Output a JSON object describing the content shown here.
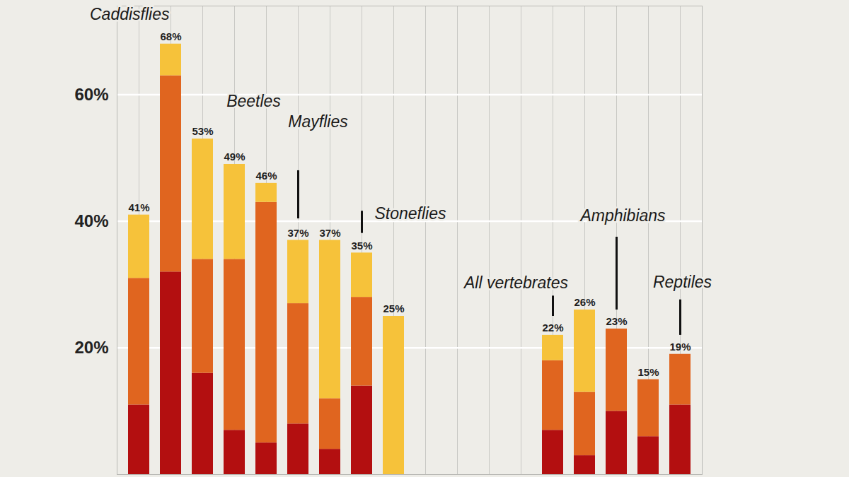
{
  "chart_data": {
    "type": "bar",
    "stacked": true,
    "grid": true,
    "tick_labels": "y",
    "categories": [
      null,
      null,
      null,
      null,
      null,
      null,
      null,
      null,
      null,
      null,
      null,
      null,
      null,
      null,
      null,
      null,
      null,
      null
    ],
    "series": [
      {
        "color": "#b30f10",
        "values": [
          11,
          32,
          16,
          7,
          5,
          8,
          4,
          14,
          0,
          null,
          null,
          null,
          null,
          7,
          3,
          10,
          6,
          11
        ]
      },
      {
        "color": "#e0651f",
        "values": [
          20,
          31,
          18,
          27,
          38,
          19,
          8,
          14,
          0,
          null,
          null,
          null,
          null,
          11,
          10,
          13,
          9,
          8
        ]
      },
      {
        "color": "#f6c23a",
        "values": [
          10,
          5,
          19,
          15,
          3,
          10,
          25,
          7,
          25,
          null,
          null,
          null,
          null,
          4,
          13,
          0,
          0,
          0
        ]
      }
    ],
    "totals": [
      41,
      68,
      53,
      49,
      46,
      37,
      37,
      35,
      25,
      null,
      null,
      null,
      null,
      22,
      26,
      23,
      15,
      19
    ],
    "total_labels": [
      "41%",
      "68%",
      "53%",
      "49%",
      "46%",
      "37%",
      "37%",
      "35%",
      "25%",
      null,
      null,
      null,
      null,
      "22%",
      "26%",
      "23%",
      "15%",
      "19%"
    ],
    "annotations": [
      {
        "text": "Caddisflies",
        "at": 1
      },
      {
        "text": "Beetles",
        "at": 3
      },
      {
        "text": "Mayflies",
        "at": 5
      },
      {
        "text": "Stoneflies",
        "at": 7
      },
      {
        "text": "All vertebrates",
        "at": 13
      },
      {
        "text": "Amphibians",
        "at": 15
      },
      {
        "text": "Reptiles",
        "at": 17
      }
    ],
    "ylim": [
      0,
      74
    ],
    "yticks": [
      {
        "value": 20,
        "label": "20%"
      },
      {
        "value": 40,
        "label": "40%"
      },
      {
        "value": 60,
        "label": "60%"
      }
    ]
  }
}
